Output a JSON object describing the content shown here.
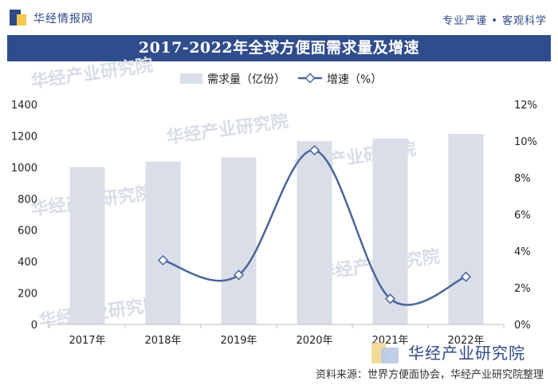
{
  "header": {
    "brand": "华经情报网",
    "slogan": "专业严谨 • 客观科学"
  },
  "banner": {
    "title": "2017-2022年全球方便面需求量及增速"
  },
  "watermark": "华经产业研究院",
  "footer": {
    "brand": "华经产业研究院",
    "source": "资料来源：世界方便面协会，华经产业研究院整理"
  },
  "colors": {
    "bar": "#d9dee9",
    "line": "#4a6599",
    "marker_fill": "#ffffff",
    "banner": "#2f4c8c",
    "axis_text": "#222222",
    "grid": "#e6e6e6"
  },
  "chart_data": {
    "type": "bar",
    "title": "2017-2022年全球方便面需求量及增速",
    "categories": [
      "2017年",
      "2018年",
      "2019年",
      "2020年",
      "2021年",
      "2022年"
    ],
    "series": [
      {
        "name": "需求量（亿份）",
        "type": "bar",
        "axis": "left",
        "values": [
          1001,
          1036,
          1064,
          1166,
          1182,
          1212
        ]
      },
      {
        "name": "增速（%）",
        "type": "line",
        "axis": "right",
        "smooth": true,
        "values": [
          null,
          3.5,
          2.7,
          9.5,
          1.4,
          2.6
        ]
      }
    ],
    "y_left": {
      "min": 0,
      "max": 1400,
      "step": 200,
      "ticks": [
        "0",
        "200",
        "400",
        "600",
        "800",
        "1000",
        "1200",
        "1400"
      ]
    },
    "y_right": {
      "min": 0,
      "max": 12,
      "step": 2,
      "ticks": [
        "0%",
        "2%",
        "4%",
        "6%",
        "8%",
        "10%",
        "12%"
      ]
    },
    "legend_position": "top-center",
    "grid": false
  }
}
